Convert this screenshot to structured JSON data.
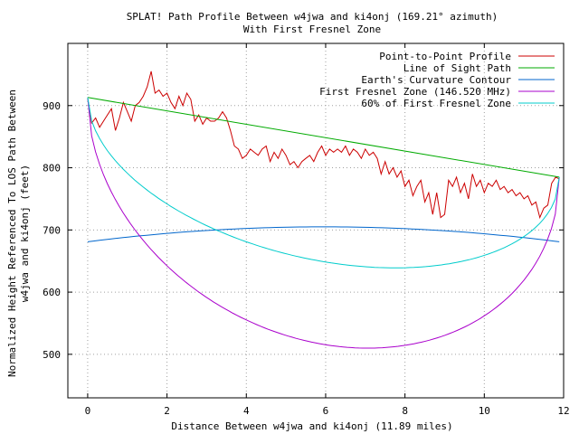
{
  "chart_data": {
    "type": "line",
    "title": "SPLAT! Path Profile Between w4jwa and ki4onj (169.21° azimuth)",
    "subtitle": "With First Fresnel Zone",
    "xlabel": "Distance Between w4jwa and ki4onj (11.89 miles)",
    "ylabel_line1": "Normalized Height Referenced To LOS Path Between",
    "ylabel_line2": "w4jwa and ki4onj (feet)",
    "xlim": [
      -0.5,
      12
    ],
    "ylim": [
      430,
      1000
    ],
    "x_ticks": [
      0,
      2,
      4,
      6,
      8,
      10,
      12
    ],
    "x_tick_labels": [
      "0",
      "2",
      "4",
      "6",
      "8",
      "10",
      "12"
    ],
    "y_ticks": [
      500,
      600,
      700,
      800,
      900
    ],
    "y_tick_labels": [
      "500",
      "600",
      "700",
      "800",
      "900"
    ],
    "grid": true,
    "legend_position": "top-right",
    "series": [
      {
        "name": "Point-to-Point Profile",
        "color": "#cc0000",
        "x": [
          0,
          0.1,
          0.2,
          0.3,
          0.45,
          0.6,
          0.7,
          0.8,
          0.9,
          1.0,
          1.1,
          1.2,
          1.3,
          1.4,
          1.5,
          1.6,
          1.7,
          1.8,
          1.9,
          2.0,
          2.1,
          2.2,
          2.3,
          2.4,
          2.5,
          2.6,
          2.7,
          2.8,
          2.9,
          3.0,
          3.1,
          3.2,
          3.3,
          3.4,
          3.5,
          3.6,
          3.7,
          3.8,
          3.9,
          4.0,
          4.1,
          4.2,
          4.3,
          4.4,
          4.5,
          4.6,
          4.7,
          4.8,
          4.9,
          5.0,
          5.1,
          5.2,
          5.3,
          5.4,
          5.5,
          5.6,
          5.7,
          5.8,
          5.9,
          6.0,
          6.1,
          6.2,
          6.3,
          6.4,
          6.5,
          6.6,
          6.7,
          6.8,
          6.9,
          7.0,
          7.1,
          7.2,
          7.3,
          7.4,
          7.5,
          7.6,
          7.7,
          7.8,
          7.9,
          8.0,
          8.1,
          8.2,
          8.3,
          8.4,
          8.5,
          8.6,
          8.7,
          8.8,
          8.9,
          9.0,
          9.1,
          9.2,
          9.3,
          9.4,
          9.5,
          9.6,
          9.7,
          9.8,
          9.9,
          10.0,
          10.1,
          10.2,
          10.3,
          10.4,
          10.5,
          10.6,
          10.7,
          10.8,
          10.9,
          11.0,
          11.1,
          11.2,
          11.3,
          11.4,
          11.5,
          11.6,
          11.7,
          11.8,
          11.89
        ],
        "values": [
          912,
          872,
          880,
          865,
          880,
          895,
          860,
          880,
          905,
          890,
          875,
          900,
          905,
          915,
          930,
          955,
          920,
          925,
          915,
          920,
          905,
          895,
          915,
          900,
          920,
          910,
          875,
          885,
          870,
          880,
          875,
          875,
          880,
          890,
          880,
          860,
          835,
          830,
          815,
          820,
          830,
          825,
          820,
          830,
          835,
          810,
          825,
          815,
          830,
          820,
          805,
          810,
          800,
          810,
          815,
          820,
          810,
          825,
          835,
          820,
          830,
          825,
          830,
          825,
          835,
          820,
          830,
          825,
          815,
          830,
          820,
          825,
          815,
          790,
          810,
          790,
          800,
          785,
          795,
          770,
          780,
          755,
          770,
          780,
          745,
          760,
          725,
          760,
          720,
          725,
          780,
          770,
          785,
          760,
          775,
          750,
          790,
          770,
          780,
          760,
          775,
          770,
          780,
          765,
          770,
          760,
          765,
          755,
          760,
          750,
          755,
          740,
          745,
          720,
          735,
          740,
          775,
          785,
          782
        ]
      },
      {
        "name": "Line of Sight Path",
        "color": "#00aa00",
        "x": [
          0,
          11.89
        ],
        "values": [
          913,
          785
        ]
      },
      {
        "name": "Earth's Curvature Contour",
        "color": "#0066cc",
        "shape": "parabola_up",
        "x_start": 0,
        "x_end": 11.89,
        "edge_value": 681,
        "mid_value": 705
      },
      {
        "name": "First Fresnel Zone (146.520 MHz)",
        "color": "#aa00cc",
        "shape": "zone_lower",
        "x_start": 0,
        "x_end": 11.89,
        "start_value": 913,
        "end_value": 785,
        "radius_mid": 333
      },
      {
        "name": "60% of First Fresnel Zone",
        "color": "#00cccc",
        "shape": "zone_lower",
        "x_start": 0,
        "x_end": 11.89,
        "start_value": 913,
        "end_value": 785,
        "radius_mid": 200
      }
    ]
  }
}
